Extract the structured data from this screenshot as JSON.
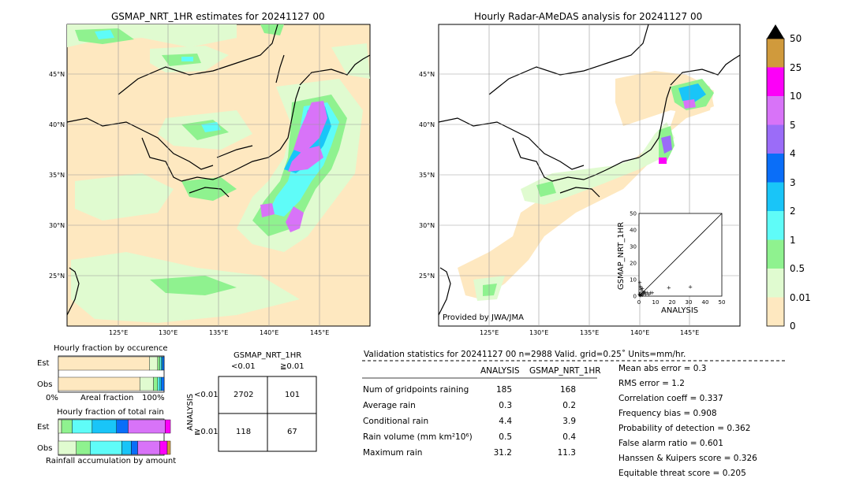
{
  "maps": {
    "left_title": "GSMAP_NRT_1HR estimates for 20241127 00",
    "right_title": "Hourly Radar-AMeDAS analysis for 20241127 00",
    "lat_labels": [
      "45°N",
      "40°N",
      "35°N",
      "30°N",
      "25°N"
    ],
    "lon_labels": [
      "125°E",
      "130°E",
      "135°E",
      "140°E",
      "145°E"
    ],
    "credit": "Provided by JWA/JMA"
  },
  "colorbar": {
    "labels": [
      "0",
      "0.01",
      "0.5",
      "1",
      "2",
      "3",
      "4",
      "5",
      "10",
      "25",
      "50"
    ],
    "colors": [
      "#fee8c0",
      "#e0fbd0",
      "#8ff28f",
      "#5ffcf8",
      "#19c5f8",
      "#0a6ef8",
      "#9b6cf8",
      "#d873f8",
      "#fc00f8",
      "#d09a3c",
      "#000000"
    ]
  },
  "scatter": {
    "xlabel": "ANALYSIS",
    "ylabel": "GSMAP_NRT_1HR",
    "ticks": [
      "0",
      "10",
      "20",
      "30",
      "40",
      "50"
    ]
  },
  "fraction": {
    "occ_title": "Hourly fraction by occurence",
    "tot_title": "Hourly fraction of total rain",
    "est_label": "Est",
    "obs_label": "Obs",
    "left_axis": "0%",
    "mid_axis": "Areal fraction",
    "right_axis": "100%",
    "bottom_label": "Rainfall accumulation by amount"
  },
  "contingency": {
    "title": "GSMAP_NRT_1HR",
    "col1": "<0.01",
    "col2": "≧0.01",
    "side": "ANALYSIS",
    "row1": "<0.01",
    "row2": "≧0.01",
    "c11": "2702",
    "c12": "101",
    "c21": "118",
    "c22": "67"
  },
  "stats": {
    "header": "Validation statistics for 20241127 00  n=2988 Valid. grid=0.25˚ Units=mm/hr.",
    "col_analysis": "ANALYSIS",
    "col_gsmap": "GSMAP_NRT_1HR",
    "rows": [
      {
        "label": "Num of gridpoints raining",
        "a": "185",
        "g": "168"
      },
      {
        "label": "Average rain",
        "a": "0.3",
        "g": "0.2"
      },
      {
        "label": "Conditional rain",
        "a": "4.4",
        "g": "3.9"
      },
      {
        "label": "Rain volume (mm km²10⁶)",
        "a": "0.5",
        "g": "0.4"
      },
      {
        "label": "Maximum rain",
        "a": "31.2",
        "g": "11.3"
      }
    ],
    "scores": [
      "Mean abs error =    0.3",
      "RMS error =    1.2",
      "Correlation coeff =  0.337",
      "Frequency bias =  0.908",
      "Probability of detection =  0.362",
      "False alarm ratio =  0.601",
      "Hanssen & Kuipers score =  0.326",
      "Equitable threat score =  0.205"
    ]
  },
  "chart_data": [
    {
      "type": "scatter",
      "xlabel": "ANALYSIS",
      "ylabel": "GSMAP_NRT_1HR",
      "xlim": [
        0,
        50
      ],
      "ylim": [
        0,
        50
      ],
      "points": [
        [
          0.5,
          0.5
        ],
        [
          1,
          2
        ],
        [
          1.5,
          1
        ],
        [
          2,
          3
        ],
        [
          0.8,
          6
        ],
        [
          1.2,
          4
        ],
        [
          2.5,
          1.5
        ],
        [
          3,
          2
        ],
        [
          3.5,
          2.5
        ],
        [
          4,
          1
        ],
        [
          5,
          2
        ],
        [
          6,
          1
        ],
        [
          0.5,
          8
        ],
        [
          1,
          5
        ],
        [
          2,
          0.5
        ],
        [
          7,
          2
        ],
        [
          8,
          2
        ],
        [
          18,
          5
        ],
        [
          31,
          5.5
        ],
        [
          1,
          0.3
        ],
        [
          0.3,
          1.2
        ],
        [
          2,
          4.5
        ]
      ],
      "reference_line": "1:1"
    },
    {
      "type": "bar",
      "title": "Hourly fraction by occurence",
      "categories": [
        "Est",
        "Obs"
      ],
      "series": [
        {
          "values": [
            0.86,
            0.77
          ]
        },
        {
          "values": [
            0.08,
            0.13
          ]
        },
        {
          "values": [
            0.02,
            0.04
          ]
        },
        {
          "values": [
            0.015,
            0.02
          ]
        },
        {
          "values": [
            0.01,
            0.015
          ]
        },
        {
          "values": [
            0.015,
            0.025
          ]
        }
      ]
    },
    {
      "type": "bar",
      "title": "Hourly fraction of total rain",
      "categories": [
        "Est",
        "Obs"
      ],
      "series": [
        {
          "values": [
            0.03,
            0.17
          ]
        },
        {
          "values": [
            0.1,
            0.13
          ]
        },
        {
          "values": [
            0.19,
            0.3
          ]
        },
        {
          "values": [
            0.23,
            0.09
          ]
        },
        {
          "values": [
            0.11,
            0.06
          ]
        },
        {
          "values": [
            0.35,
            0.21
          ]
        },
        {
          "values": [
            0.05,
            0.07
          ]
        },
        {
          "values": [
            0.0,
            0.03
          ]
        }
      ]
    }
  ]
}
